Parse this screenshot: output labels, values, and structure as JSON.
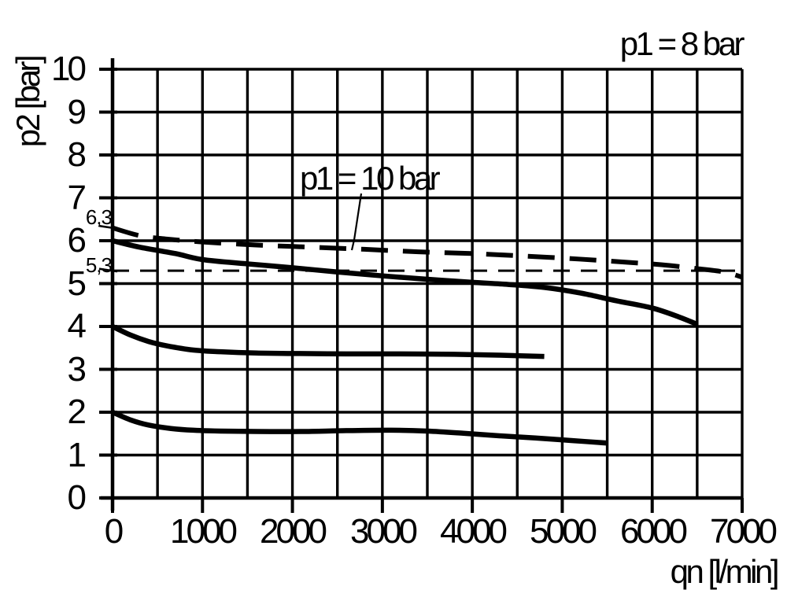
{
  "colors": {
    "background": "#ffffff",
    "ink": "#000000"
  },
  "labels": {
    "condition": "p1 = 8 bar",
    "annotation": "p1 = 10 bar"
  },
  "y_axis": {
    "title": "p2 [bar]",
    "ticks": [
      "10",
      "9",
      "8",
      "7",
      "6",
      "5",
      "4",
      "3",
      "2",
      "1",
      "0"
    ],
    "special_labels": [
      {
        "text": "6,3",
        "value": 6.3
      },
      {
        "text": "5,3",
        "value": 5.3
      }
    ]
  },
  "x_axis": {
    "title": "qn [l/min]",
    "ticks": [
      "0",
      "1000",
      "2000",
      "3000",
      "4000",
      "5000",
      "6000",
      "7000"
    ]
  },
  "chart_data": {
    "type": "line",
    "title": "",
    "xlabel": "qn [l/min]",
    "ylabel": "p2 [bar]",
    "xlim": [
      0,
      7000
    ],
    "ylim": [
      0,
      10
    ],
    "x_grid_step": 500,
    "x_tick_step": 1000,
    "y_grid_step": 1,
    "grid": true,
    "legend": "none",
    "annotations": [
      {
        "text": "p1 = 8 bar",
        "role": "inlet-pressure-condition",
        "position": "top-right"
      },
      {
        "text": "p1 = 10 bar",
        "role": "dashed-curve-callout",
        "points_to": {
          "x": 2660,
          "y": 5.78
        }
      },
      {
        "text": "6,3",
        "role": "y-value-marker",
        "y": 6.3
      },
      {
        "text": "5,3",
        "role": "y-value-marker",
        "y": 5.3
      }
    ],
    "series": [
      {
        "id": "p1-10-bar-curve",
        "label": "p1 = 10 bar",
        "style": "dashed-thick",
        "points": [
          [
            0,
            6.3
          ],
          [
            300,
            6.12
          ],
          [
            600,
            6.04
          ],
          [
            1000,
            5.97
          ],
          [
            1600,
            5.9
          ],
          [
            2200,
            5.85
          ],
          [
            2800,
            5.8
          ],
          [
            3400,
            5.74
          ],
          [
            4000,
            5.7
          ],
          [
            4600,
            5.64
          ],
          [
            5200,
            5.57
          ],
          [
            5700,
            5.5
          ],
          [
            6100,
            5.44
          ],
          [
            6500,
            5.35
          ],
          [
            6800,
            5.27
          ],
          [
            7000,
            5.15
          ]
        ]
      },
      {
        "id": "reference-5-3-bar",
        "label": "5,3",
        "style": "dashed-thin",
        "points": [
          [
            0,
            5.3
          ],
          [
            7000,
            5.3
          ]
        ]
      },
      {
        "id": "p1-8-bar-upper-curve",
        "label": "",
        "style": "solid",
        "points": [
          [
            0,
            6.0
          ],
          [
            300,
            5.85
          ],
          [
            700,
            5.7
          ],
          [
            1000,
            5.56
          ],
          [
            1500,
            5.46
          ],
          [
            2000,
            5.37
          ],
          [
            2500,
            5.27
          ],
          [
            3000,
            5.18
          ],
          [
            3500,
            5.1
          ],
          [
            4000,
            5.03
          ],
          [
            4400,
            4.98
          ],
          [
            4800,
            4.91
          ],
          [
            5200,
            4.78
          ],
          [
            5600,
            4.6
          ],
          [
            6000,
            4.43
          ],
          [
            6300,
            4.22
          ],
          [
            6500,
            4.05
          ]
        ]
      },
      {
        "id": "p1-8-bar-middle-curve",
        "label": "",
        "style": "solid",
        "points": [
          [
            0,
            4.0
          ],
          [
            200,
            3.8
          ],
          [
            400,
            3.65
          ],
          [
            600,
            3.55
          ],
          [
            900,
            3.45
          ],
          [
            1200,
            3.41
          ],
          [
            1600,
            3.38
          ],
          [
            2000,
            3.37
          ],
          [
            2600,
            3.36
          ],
          [
            3200,
            3.36
          ],
          [
            3800,
            3.35
          ],
          [
            4300,
            3.33
          ],
          [
            4800,
            3.3
          ]
        ]
      },
      {
        "id": "p1-8-bar-lower-curve",
        "label": "",
        "style": "solid",
        "points": [
          [
            0,
            2.0
          ],
          [
            200,
            1.82
          ],
          [
            400,
            1.7
          ],
          [
            650,
            1.62
          ],
          [
            900,
            1.58
          ],
          [
            1200,
            1.56
          ],
          [
            1600,
            1.55
          ],
          [
            2100,
            1.55
          ],
          [
            2600,
            1.57
          ],
          [
            3100,
            1.58
          ],
          [
            3500,
            1.56
          ],
          [
            3900,
            1.51
          ],
          [
            4300,
            1.45
          ],
          [
            4700,
            1.4
          ],
          [
            5100,
            1.34
          ],
          [
            5500,
            1.28
          ]
        ]
      }
    ]
  }
}
